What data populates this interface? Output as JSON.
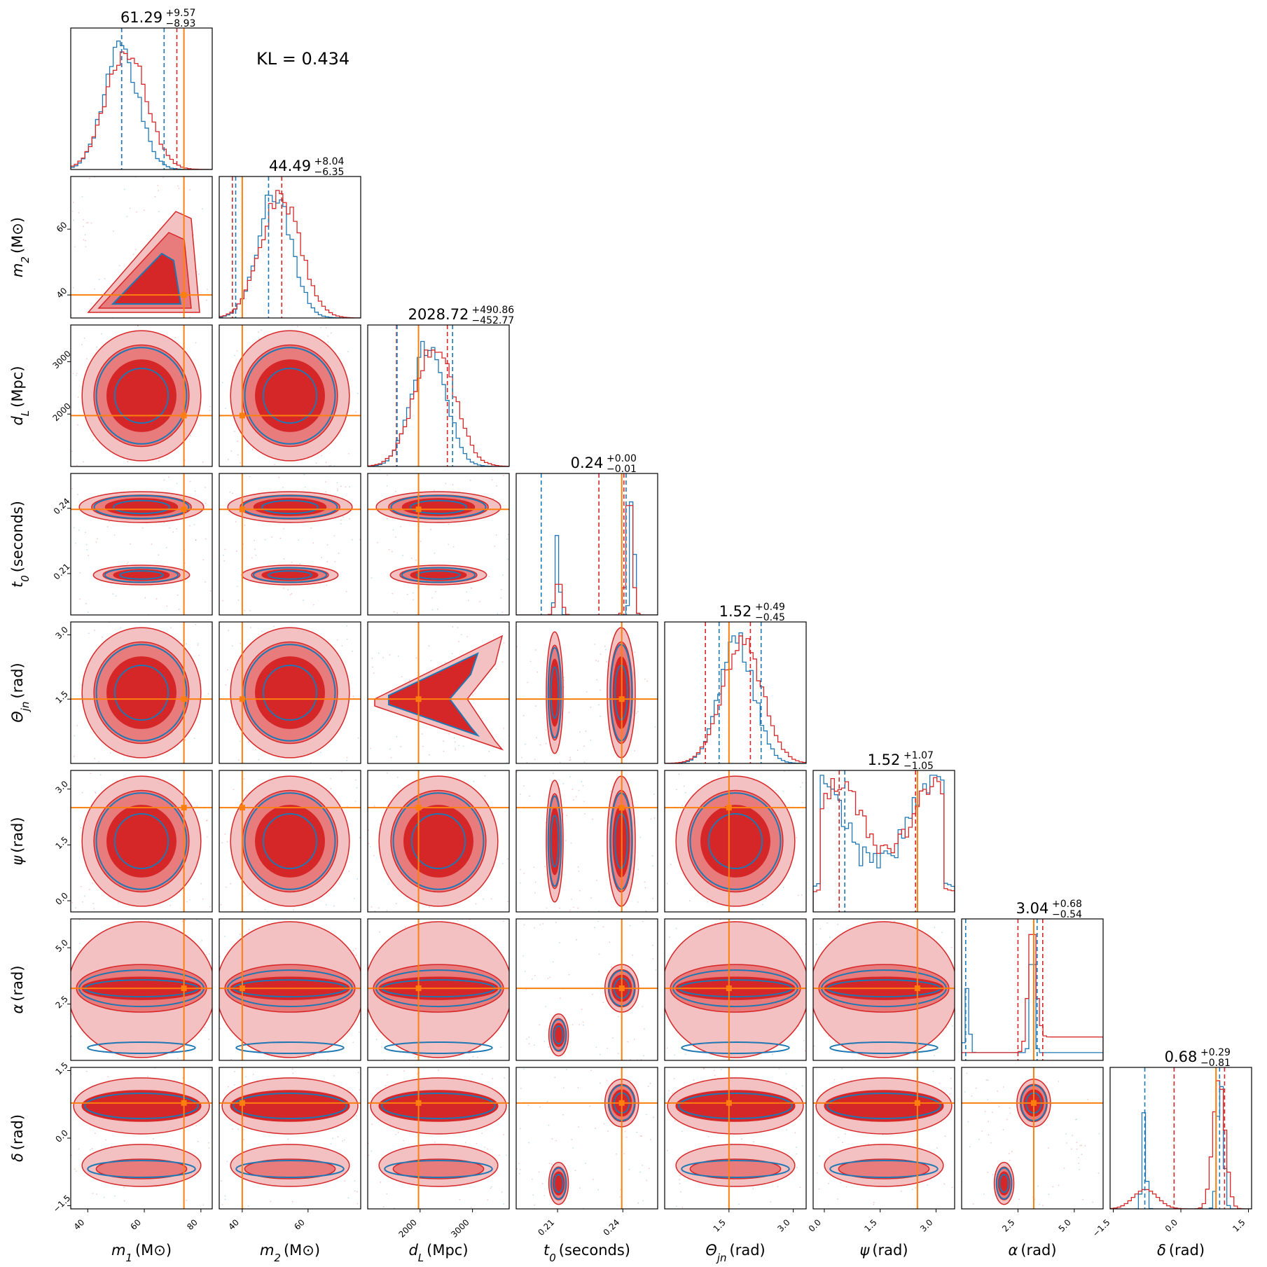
{
  "kl_text": "KL = 0.434",
  "colors": {
    "red": "#d62728",
    "blue": "#1f77b4",
    "orange": "#ff7f0e",
    "red_fill_light": "#f3c1c1",
    "red_fill_mid": "#e87c7c"
  },
  "chart_data": {
    "type": "corner",
    "title": "",
    "n_params": 8,
    "legend": [],
    "params": [
      {
        "name": "m1",
        "label": "m_1 (M_⊙)",
        "range": [
          34,
          84
        ],
        "ticks": [
          40,
          60,
          80
        ],
        "tick_labels": [
          "40",
          "60",
          "80"
        ],
        "truth": 74,
        "median": "61.29",
        "plus": "+9.57",
        "minus": "−8.93"
      },
      {
        "name": "m2",
        "label": "m_2 (M_⊙)",
        "range": [
          33,
          76
        ],
        "ticks": [
          40,
          60
        ],
        "tick_labels": [
          "40",
          "60"
        ],
        "truth": 40,
        "median": "44.49",
        "plus": "+8.04",
        "minus": "−6.35"
      },
      {
        "name": "dL",
        "label": "d_L (Mpc)",
        "range": [
          1000,
          3700
        ],
        "ticks": [
          2000,
          3000
        ],
        "tick_labels": [
          "2000",
          "3000"
        ],
        "truth": 1970,
        "median": "2028.72",
        "plus": "+490.86",
        "minus": "−452.77"
      },
      {
        "name": "t0",
        "label": "t_0 (seconds)",
        "range": [
          0.191,
          0.256
        ],
        "ticks": [
          0.21,
          0.24
        ],
        "tick_labels": [
          "0.21",
          "0.24"
        ],
        "truth": 0.2395,
        "median": "0.24",
        "plus": "+0.00",
        "minus": "−0.01"
      },
      {
        "name": "theta_jn",
        "label": "Θ_jn (rad)",
        "range": [
          0.0,
          3.3
        ],
        "ticks": [
          1.5,
          3.0
        ],
        "tick_labels": [
          "1.5",
          "3.0"
        ],
        "truth": 1.5,
        "median": "1.52",
        "plus": "+0.49",
        "minus": "−0.45"
      },
      {
        "name": "psi",
        "label": "ψ (rad)",
        "range": [
          -0.3,
          3.5
        ],
        "ticks": [
          0.0,
          1.5,
          3.0
        ],
        "tick_labels": [
          "0.0",
          "1.5",
          "3.0"
        ],
        "truth": 2.5,
        "median": "1.52",
        "plus": "+1.07",
        "minus": "−1.05"
      },
      {
        "name": "alpha",
        "label": "α (rad)",
        "range": [
          0.0,
          6.28
        ],
        "ticks": [
          2.5,
          5.0
        ],
        "tick_labels": [
          "2.5",
          "5.0"
        ],
        "truth": 3.2,
        "median": "3.04",
        "plus": "+0.68",
        "minus": "−0.54"
      },
      {
        "name": "delta",
        "label": "δ (rad)",
        "range": [
          -1.57,
          1.57
        ],
        "ticks": [
          -1.5,
          0.0,
          1.5
        ],
        "tick_labels": [
          "−1.5",
          "0.0",
          "1.5"
        ],
        "truth": 0.78,
        "median": "0.68",
        "plus": "+0.29",
        "minus": "−0.81"
      }
    ],
    "diagonal_quantile_lines": {
      "red": [
        [
          52,
          71.5
        ],
        [
          37,
          52
        ],
        [
          1550,
          2520
        ],
        [
          0.229,
          0.2405
        ],
        [
          0.95,
          2.0
        ],
        [
          0.4,
          2.45
        ],
        [
          2.5,
          3.6
        ],
        [
          -0.15,
          0.97
        ]
      ],
      "blue": [
        [
          52,
          67
        ],
        [
          38,
          48
        ],
        [
          1560,
          2620
        ],
        [
          0.2025,
          0.2415
        ],
        [
          1.27,
          2.25
        ],
        [
          0.55,
          2.5
        ],
        [
          0.18,
          3.35
        ],
        [
          -0.8,
          0.86
        ]
      ]
    },
    "blobs": [
      {
        "row": 1,
        "col": 0,
        "shape": "triangle"
      },
      {
        "row": 2,
        "col": 0,
        "shape": "box"
      },
      {
        "row": 2,
        "col": 1,
        "shape": "box"
      },
      {
        "row": 3,
        "col": 0,
        "shape": "bimodal_t0"
      },
      {
        "row": 3,
        "col": 1,
        "shape": "bimodal_t0"
      },
      {
        "row": 3,
        "col": 2,
        "shape": "bimodal_t0"
      },
      {
        "row": 4,
        "col": 0,
        "shape": "box"
      },
      {
        "row": 4,
        "col": 1,
        "shape": "box"
      },
      {
        "row": 4,
        "col": 2,
        "shape": "chevron"
      },
      {
        "row": 4,
        "col": 3,
        "shape": "vbimodal"
      },
      {
        "row": 5,
        "col": 0,
        "shape": "box"
      },
      {
        "row": 5,
        "col": 1,
        "shape": "box"
      },
      {
        "row": 5,
        "col": 2,
        "shape": "box"
      },
      {
        "row": 5,
        "col": 3,
        "shape": "vbimodal"
      },
      {
        "row": 5,
        "col": 4,
        "shape": "box"
      },
      {
        "row": 6,
        "col": 0,
        "shape": "hband"
      },
      {
        "row": 6,
        "col": 1,
        "shape": "hband"
      },
      {
        "row": 6,
        "col": 2,
        "shape": "hband"
      },
      {
        "row": 6,
        "col": 3,
        "shape": "spot"
      },
      {
        "row": 6,
        "col": 4,
        "shape": "hband"
      },
      {
        "row": 6,
        "col": 5,
        "shape": "hband"
      },
      {
        "row": 7,
        "col": 0,
        "shape": "hband_low"
      },
      {
        "row": 7,
        "col": 1,
        "shape": "hband_low"
      },
      {
        "row": 7,
        "col": 2,
        "shape": "hband_low"
      },
      {
        "row": 7,
        "col": 3,
        "shape": "spot"
      },
      {
        "row": 7,
        "col": 4,
        "shape": "hband_low"
      },
      {
        "row": 7,
        "col": 5,
        "shape": "hband_low"
      },
      {
        "row": 7,
        "col": 6,
        "shape": "spot"
      }
    ]
  }
}
